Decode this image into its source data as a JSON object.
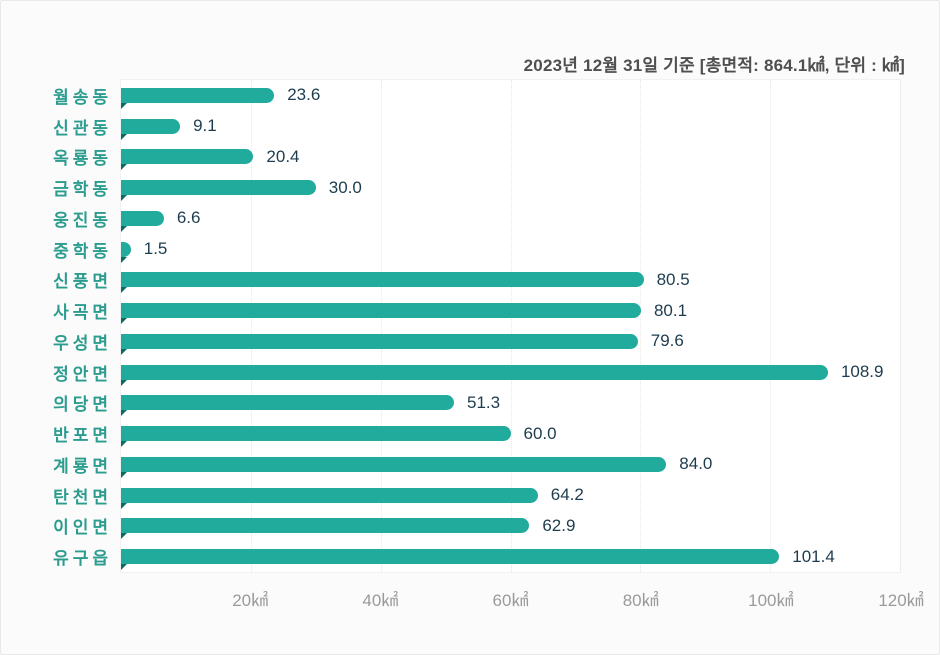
{
  "header": {
    "caption": "2023년 12월 31일 기준 [총면적: 864.1㎢, 단위 : ㎢]"
  },
  "chart_data": {
    "type": "bar",
    "orientation": "horizontal",
    "title": "2023년 12월 31일 기준 [총면적: 864.1㎢, 단위 : ㎢]",
    "unit": "㎢",
    "total_area": "864.1㎢",
    "categories": [
      "월송동",
      "신관동",
      "옥룡동",
      "금학동",
      "웅진동",
      "중학동",
      "신풍면",
      "사곡면",
      "우성면",
      "정안면",
      "의당면",
      "반포면",
      "계룡면",
      "탄천면",
      "이인면",
      "유구읍"
    ],
    "values": [
      23.6,
      9.1,
      20.4,
      30.0,
      6.6,
      1.5,
      80.5,
      80.1,
      79.6,
      108.9,
      51.3,
      60.0,
      84.0,
      64.2,
      62.9,
      101.4
    ],
    "xlim": [
      0,
      120
    ],
    "x_ticks": [
      {
        "value": 20,
        "label": "20㎢"
      },
      {
        "value": 40,
        "label": "40㎢"
      },
      {
        "value": 60,
        "label": "60㎢"
      },
      {
        "value": 80,
        "label": "80㎢"
      },
      {
        "value": 100,
        "label": "100㎢"
      },
      {
        "value": 120,
        "label": "120㎢"
      }
    ],
    "grid": "vertical-dotted",
    "legend": "none",
    "colors": {
      "bar": "#21ab9c",
      "bar_tail": "#0f6b61",
      "category_label": "#2b9c8e",
      "value_label": "#1d3c4e",
      "tick_label": "#9a9a9a",
      "caption": "#4f4f4f",
      "plot_bg": "#ffffff",
      "page_bg": "#fbfbfb",
      "grid": "#e7e7e7"
    }
  }
}
